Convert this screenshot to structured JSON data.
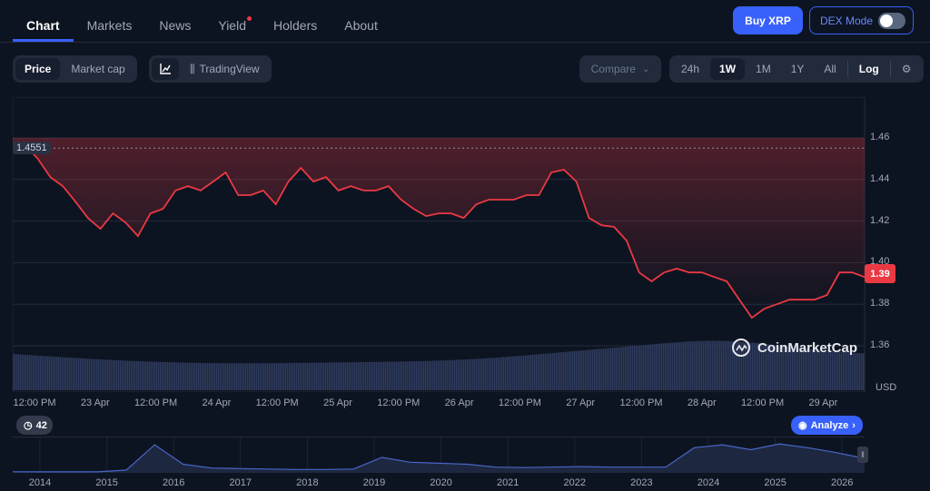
{
  "tabs": [
    {
      "label": "Chart",
      "active": true
    },
    {
      "label": "Markets"
    },
    {
      "label": "News"
    },
    {
      "label": "Yield",
      "badge": true
    },
    {
      "label": "Holders"
    },
    {
      "label": "About"
    }
  ],
  "buttons": {
    "buy": "Buy XRP",
    "dex_mode": "DEX Mode",
    "dex_mode_on": false
  },
  "toolbar": {
    "price": "Price",
    "market_cap": "Market cap",
    "line_icon": "line-chart-icon",
    "tradingview": "TradingView",
    "compare": "Compare",
    "ranges": [
      "24h",
      "1W",
      "1M",
      "1Y",
      "All"
    ],
    "active_range": "1W",
    "log": "Log",
    "settings_icon": "sliders-icon"
  },
  "colors": {
    "accent": "#3861fb",
    "down": "#ea3943",
    "up": "#16c784",
    "bg": "#0d1421"
  },
  "chart_data": {
    "type": "line",
    "unit_label": "USD",
    "open_label": "1.4551",
    "current_label": "1.39",
    "y_ticks": [
      "1.46",
      "1.44",
      "1.42",
      "1.40",
      "1.38",
      "1.36"
    ],
    "ylim": [
      1.355,
      1.465
    ],
    "x_ticks": [
      "12:00 PM",
      "23 Apr",
      "12:00 PM",
      "24 Apr",
      "12:00 PM",
      "25 Apr",
      "12:00 PM",
      "26 Apr",
      "12:00 PM",
      "27 Apr",
      "12:00 PM",
      "28 Apr",
      "12:00 PM",
      "29 Apr"
    ],
    "prices": [
      1.4565,
      1.4565,
      1.45,
      1.4412,
      1.4368,
      1.4294,
      1.4215,
      1.4163,
      1.4237,
      1.4194,
      1.4128,
      1.4237,
      1.4259,
      1.4347,
      1.4368,
      1.4347,
      1.439,
      1.4434,
      1.4325,
      1.4325,
      1.4347,
      1.4281,
      1.439,
      1.4456,
      1.439,
      1.4412,
      1.4347,
      1.4368,
      1.4347,
      1.4347,
      1.4368,
      1.4303,
      1.4259,
      1.4224,
      1.4237,
      1.4237,
      1.4215,
      1.4281,
      1.4303,
      1.4303,
      1.4303,
      1.4325,
      1.4325,
      1.4434,
      1.4447,
      1.439,
      1.4215,
      1.418,
      1.4172,
      1.4106,
      1.3953,
      1.391,
      1.3953,
      1.3971,
      1.3953,
      1.3953,
      1.3931,
      1.391,
      1.3822,
      1.3735,
      1.3778,
      1.38,
      1.3822,
      1.3822,
      1.3822,
      1.3844,
      1.3953,
      1.3953,
      1.3931
    ],
    "watermark": "CoinMarketCap"
  },
  "history_badge": "42",
  "analyze": "Analyze",
  "overview": {
    "years": [
      "2014",
      "2015",
      "2016",
      "2017",
      "2018",
      "2019",
      "2020",
      "2021",
      "2022",
      "2023",
      "2024",
      "2025",
      "2026"
    ],
    "values": [
      0.02,
      0.01,
      0.01,
      0.01,
      0.2,
      2.8,
      0.8,
      0.4,
      0.35,
      0.3,
      0.25,
      0.25,
      0.3,
      1.5,
      1.0,
      0.9,
      0.8,
      0.5,
      0.45,
      0.5,
      0.55,
      0.5,
      0.5,
      0.5,
      2.5,
      2.8,
      2.3,
      2.9,
      2.5,
      2.0,
      1.4
    ]
  }
}
